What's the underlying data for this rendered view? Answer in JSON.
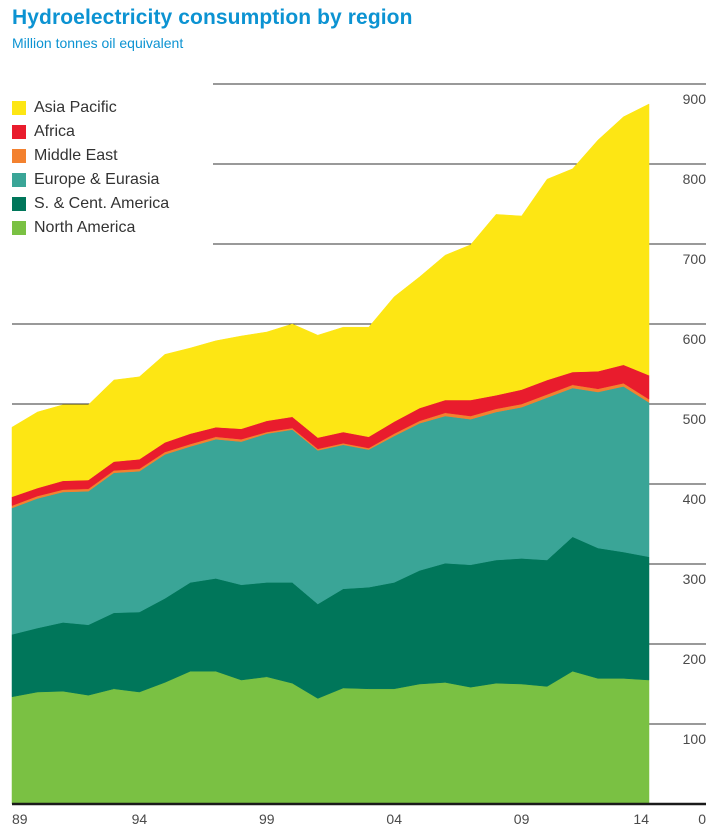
{
  "chart_data": {
    "type": "area",
    "stacked": true,
    "title": "Hydroelectricity consumption by region",
    "subtitle": "Million tonnes oil equivalent",
    "xlabel": "",
    "ylabel": "Million tonnes oil equivalent",
    "x": [
      1989,
      1990,
      1991,
      1992,
      1993,
      1994,
      1995,
      1996,
      1997,
      1998,
      1999,
      2000,
      2001,
      2002,
      2003,
      2004,
      2005,
      2006,
      2007,
      2008,
      2009,
      2010,
      2011,
      2012,
      2013,
      2014
    ],
    "x_tick_labels": [
      "89",
      "94",
      "99",
      "04",
      "09",
      "14"
    ],
    "x_tick_years": [
      1989,
      1994,
      1999,
      2004,
      2009,
      2014
    ],
    "y_tick_labels": [
      "0",
      "100",
      "200",
      "300",
      "400",
      "500",
      "600",
      "700",
      "800",
      "900"
    ],
    "y_tick_values": [
      0,
      100,
      200,
      300,
      400,
      500,
      600,
      700,
      800,
      900
    ],
    "ylim": [
      0,
      900
    ],
    "grid": true,
    "y_axis_side": "right",
    "legend_position": "top-left",
    "series": [
      {
        "name": "North America",
        "color": "#7ac143",
        "values": [
          134,
          140,
          141,
          136,
          144,
          140,
          152,
          166,
          166,
          155,
          159,
          151,
          132,
          145,
          144,
          144,
          150,
          152,
          146,
          151,
          150,
          147,
          166,
          157,
          157,
          155
        ]
      },
      {
        "name": "S. & Cent. America",
        "color": "#00765a",
        "values": [
          78,
          80,
          86,
          88,
          95,
          100,
          105,
          111,
          116,
          119,
          118,
          126,
          118,
          124,
          127,
          133,
          142,
          149,
          153,
          154,
          157,
          158,
          168,
          163,
          158,
          154
        ]
      },
      {
        "name": "Europe & Eurasia",
        "color": "#3aa597",
        "values": [
          158,
          162,
          163,
          167,
          175,
          176,
          180,
          170,
          174,
          179,
          186,
          191,
          192,
          180,
          172,
          183,
          184,
          184,
          182,
          185,
          189,
          203,
          186,
          195,
          207,
          193
        ]
      },
      {
        "name": "Middle East",
        "color": "#f3812f",
        "values": [
          3,
          3,
          3,
          3,
          3,
          3,
          3,
          3,
          3,
          3,
          2,
          2,
          2,
          2,
          2,
          3,
          3,
          4,
          4,
          4,
          4,
          4,
          4,
          4,
          4,
          4
        ]
      },
      {
        "name": "Africa",
        "color": "#e91c2d",
        "values": [
          11,
          10,
          11,
          11,
          11,
          12,
          12,
          13,
          12,
          13,
          14,
          14,
          14,
          14,
          14,
          15,
          16,
          16,
          20,
          17,
          18,
          18,
          16,
          22,
          23,
          30
        ]
      },
      {
        "name": "Asia Pacific",
        "color": "#fde614",
        "values": [
          87,
          95,
          95,
          94,
          102,
          103,
          110,
          107,
          108,
          116,
          111,
          116,
          128,
          131,
          137,
          156,
          164,
          181,
          194,
          226,
          217,
          251,
          254,
          289,
          310,
          339
        ]
      }
    ]
  },
  "legend": [
    {
      "label": "Asia Pacific",
      "color": "#fde614"
    },
    {
      "label": "Africa",
      "color": "#e91c2d"
    },
    {
      "label": "Middle East",
      "color": "#f3812f"
    },
    {
      "label": "Europe & Eurasia",
      "color": "#3aa597"
    },
    {
      "label": "S. & Cent. America",
      "color": "#00765a"
    },
    {
      "label": "North America",
      "color": "#7ac143"
    }
  ]
}
